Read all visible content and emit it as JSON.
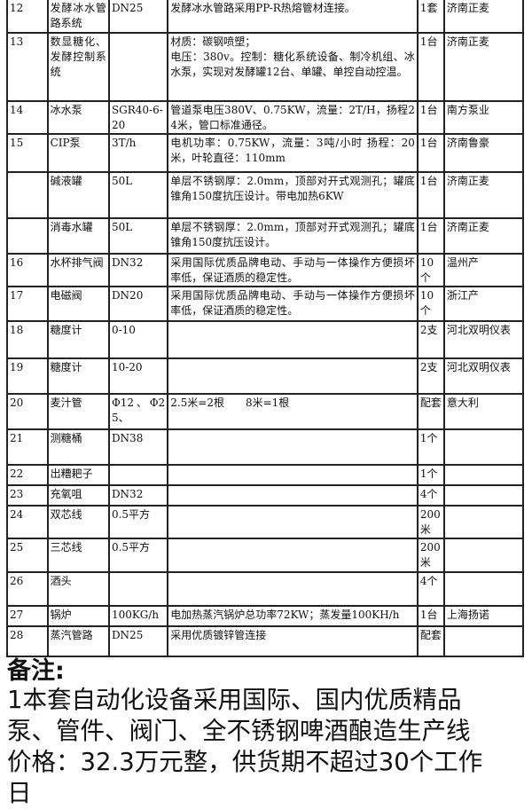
{
  "table": {
    "rows": [
      {
        "no": "12",
        "name": "发酵冰水管路系统",
        "spec": "DN25",
        "desc": "发酵冰水管路采用PP-R热熔管材连接。",
        "qty": "1套",
        "origin": "济南正麦"
      },
      {
        "no": "13",
        "name": "数显糖化、发酵控制系统",
        "spec": "",
        "desc": "材质：碳钢喷塑；\n电压：380v。控制：糖化系统设备、制冷机组、冰水泵，实现对发酵罐12台、单罐、单控自动控温。",
        "qty": "1台",
        "origin": "济南正麦"
      },
      {
        "no": "14",
        "name": "冰水泵",
        "spec": "SGR40-6-20",
        "desc": "管道泵电压380V、0.75KW，流量：2T/H，扬程24米，管口标准通径。",
        "qty": "1台",
        "origin": "南方泵业"
      },
      {
        "no": "15",
        "name": "CIP泵",
        "spec": "3T/h",
        "desc": "电机功率：0.75KW，流量：3吨/小时 扬程：20米，叶轮直径：110mm",
        "qty": "1台",
        "origin": "济南鲁豪"
      },
      {
        "no": "",
        "name": "碱液罐",
        "spec": "50L",
        "desc": "单层不锈钢厚：2.0mm，顶部对开式观测孔；罐底锥角150度抗压设计。带电加热6KW",
        "qty": "1台",
        "origin": "济南正麦"
      },
      {
        "no": "",
        "name": "消毒水罐",
        "spec": "50L",
        "desc": "单层不锈钢厚：2.0mm，顶部对开式观测孔；罐底锥角150度抗压设计。",
        "qty": "1台",
        "origin": "济南正麦"
      },
      {
        "no": "16",
        "name": "水杯排气阀",
        "spec": "DN32",
        "desc": "采用国际优质品牌电动、手动与一体操作方便损坏率低，保证酒质的稳定性。",
        "qty": "10个",
        "origin": "温州产"
      },
      {
        "no": "17",
        "name": "电磁阀",
        "spec": "DN20",
        "desc": "采用国际优质品牌电动、手动与一体操作方便损坏率低，保证酒质的稳定性。",
        "qty": "10个",
        "origin": "浙江产"
      },
      {
        "no": "18",
        "name": "糖度计",
        "spec": "0-10",
        "desc": "",
        "qty": "2支",
        "origin": "河北双明仪表"
      },
      {
        "no": "19",
        "name": "糖度计",
        "spec": "10-20",
        "desc": "",
        "qty": "2支",
        "origin": "河北双明仪表"
      },
      {
        "no": "20",
        "name": "麦汁管",
        "spec": "Φ12、Φ25、",
        "desc": "2.5米=2根　　8米=1根",
        "qty": "配套",
        "origin": "意大利"
      },
      {
        "no": "21",
        "name": "测糖桶",
        "spec": "DN38",
        "desc": "",
        "qty": "1个",
        "origin": ""
      },
      {
        "no": "22",
        "name": "出糟耙子",
        "spec": "",
        "desc": "",
        "qty": "1个",
        "origin": ""
      },
      {
        "no": "23",
        "name": "充氧咀",
        "spec": "DN32",
        "desc": "",
        "qty": "4个",
        "origin": ""
      },
      {
        "no": "24",
        "name": "双芯线",
        "spec": "0.5平方",
        "desc": "",
        "qty": "200米",
        "origin": ""
      },
      {
        "no": "25",
        "name": "三芯线",
        "spec": "0.5平方",
        "desc": "",
        "qty": "200米",
        "origin": ""
      },
      {
        "no": "26",
        "name": "酒头",
        "spec": "",
        "desc": "",
        "qty": "4个",
        "origin": ""
      },
      {
        "no": "27",
        "name": "锅炉",
        "spec": "100KG/h",
        "desc": "电加热蒸汽锅炉总功率72KW；蒸发量100KH/h",
        "qty": "1台",
        "origin": "上海扬诺"
      },
      {
        "no": "28",
        "name": "蒸汽管路",
        "spec": "DN25",
        "desc": "采用优质镀锌管连接",
        "qty": "配套",
        "origin": ""
      }
    ]
  },
  "notes": {
    "title": "备注:",
    "lines": [
      "1本套自动化设备采用国际、国内优质精品",
      "泵、管件、阀门、全不锈钢啤酒酿造生产线",
      "价格：32.3万元整，供货期不超过30个工作",
      "日"
    ]
  }
}
